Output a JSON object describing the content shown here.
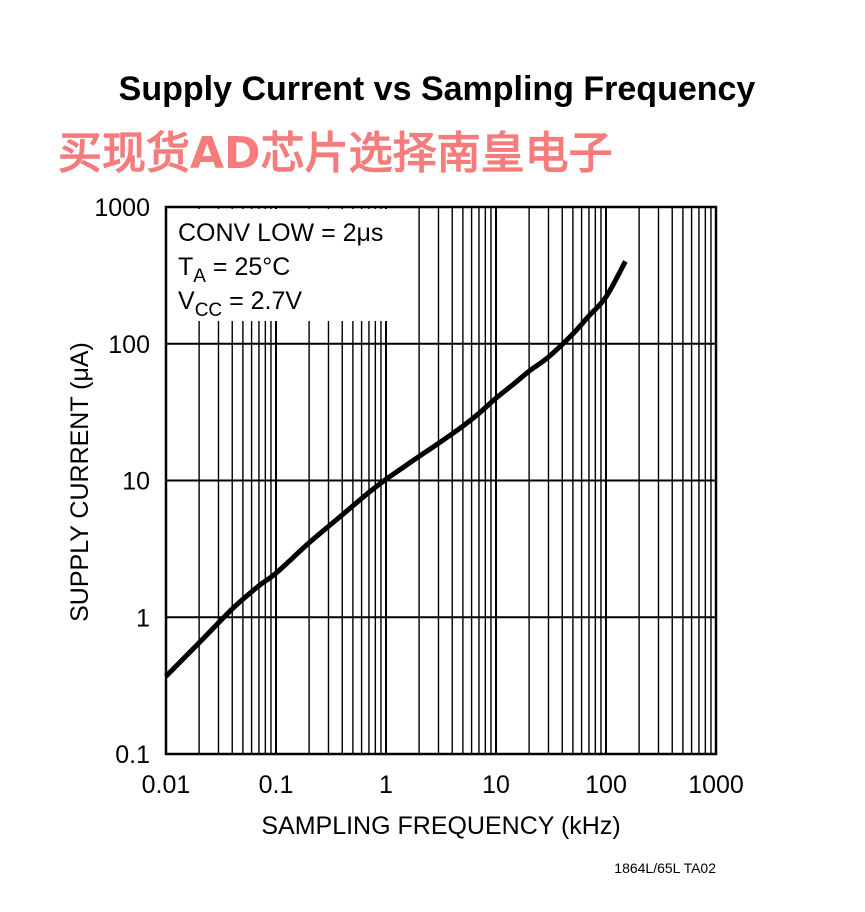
{
  "watermark": "买现货AD芯片选择南皇电子",
  "figure_id": "1864L/65L TA02",
  "colors": {
    "watermark": "#f47c7c",
    "curve": "#000000",
    "grid": "#000000"
  },
  "chart_data": {
    "type": "line",
    "title": "Supply Current vs Sampling Frequency",
    "xlabel": "SAMPLING FREQUENCY (kHz)",
    "ylabel": "SUPPLY CURRENT (μA)",
    "xscale": "log",
    "yscale": "log",
    "xlim": [
      0.01,
      1000
    ],
    "ylim": [
      0.1,
      1000
    ],
    "x_ticks": [
      0.01,
      0.1,
      1,
      10,
      100,
      1000
    ],
    "x_tick_labels": [
      "0.01",
      "0.1",
      "1",
      "10",
      "100",
      "1000"
    ],
    "y_ticks": [
      0.1,
      1,
      10,
      100,
      1000
    ],
    "y_tick_labels": [
      "0.1",
      "1",
      "10",
      "100",
      "1000"
    ],
    "grid": true,
    "annotations": [
      {
        "main": "CONV LOW = 2μs",
        "sub": ""
      },
      {
        "main": "T",
        "sub": "A",
        "rest": " = 25°C"
      },
      {
        "main": "V",
        "sub": "CC",
        "rest": " = 2.7V"
      }
    ],
    "series": [
      {
        "x": [
          0.01,
          0.02,
          0.04,
          0.07,
          0.1,
          0.2,
          0.4,
          0.7,
          1,
          1.5,
          2,
          3,
          5,
          7,
          10,
          15,
          20,
          30,
          50,
          70,
          100,
          150
        ],
        "y": [
          0.37,
          0.65,
          1.15,
          1.7,
          2.1,
          3.5,
          5.6,
          8.2,
          10.2,
          12.8,
          15,
          18.7,
          25,
          31,
          40,
          52,
          63,
          80,
          118,
          160,
          220,
          400
        ]
      }
    ]
  }
}
